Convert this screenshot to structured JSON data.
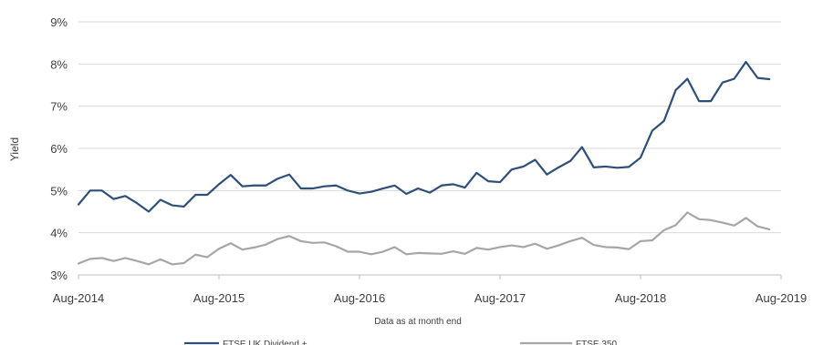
{
  "chart_data": {
    "type": "line",
    "ylabel": "Yield",
    "xlabel": "Data as at month end",
    "ylim": [
      3,
      9
    ],
    "yticks": [
      3,
      4,
      5,
      6,
      7,
      8,
      9
    ],
    "ytick_labels": [
      "3%",
      "4%",
      "5%",
      "6%",
      "7%",
      "8%",
      "9%"
    ],
    "xticks": [
      "Aug-2014",
      "Aug-2015",
      "Aug-2016",
      "Aug-2017",
      "Aug-2018",
      "Aug-2019"
    ],
    "x_start": "Aug-2014",
    "grid": "horizontal",
    "legend": "bottom",
    "series": [
      {
        "name": "FTSE UK Dividend +",
        "color": "#2e4f79",
        "values": [
          4.67,
          5.0,
          5.0,
          4.8,
          4.87,
          4.7,
          4.5,
          4.78,
          4.65,
          4.62,
          4.9,
          4.9,
          5.15,
          5.37,
          5.1,
          5.12,
          5.12,
          5.28,
          5.38,
          5.05,
          5.05,
          5.1,
          5.12,
          5.0,
          4.93,
          4.97,
          5.05,
          5.12,
          4.92,
          5.05,
          4.95,
          5.12,
          5.15,
          5.07,
          5.42,
          5.22,
          5.2,
          5.5,
          5.57,
          5.73,
          5.38,
          5.55,
          5.7,
          6.03,
          5.55,
          5.57,
          5.54,
          5.56,
          5.78,
          6.42,
          6.65,
          7.38,
          7.65,
          7.12,
          7.12,
          7.56,
          7.65,
          8.05,
          7.67,
          7.64
        ]
      },
      {
        "name": "FTSE 350",
        "color": "#a6a6a6",
        "values": [
          3.27,
          3.38,
          3.4,
          3.33,
          3.4,
          3.33,
          3.25,
          3.37,
          3.25,
          3.28,
          3.48,
          3.42,
          3.62,
          3.75,
          3.6,
          3.65,
          3.72,
          3.85,
          3.92,
          3.8,
          3.76,
          3.77,
          3.68,
          3.55,
          3.55,
          3.49,
          3.55,
          3.66,
          3.49,
          3.52,
          3.51,
          3.5,
          3.56,
          3.5,
          3.64,
          3.6,
          3.66,
          3.7,
          3.66,
          3.74,
          3.62,
          3.7,
          3.8,
          3.88,
          3.71,
          3.66,
          3.65,
          3.61,
          3.8,
          3.82,
          4.06,
          4.18,
          4.48,
          4.32,
          4.3,
          4.24,
          4.17,
          4.35,
          4.15,
          4.08
        ]
      }
    ]
  }
}
